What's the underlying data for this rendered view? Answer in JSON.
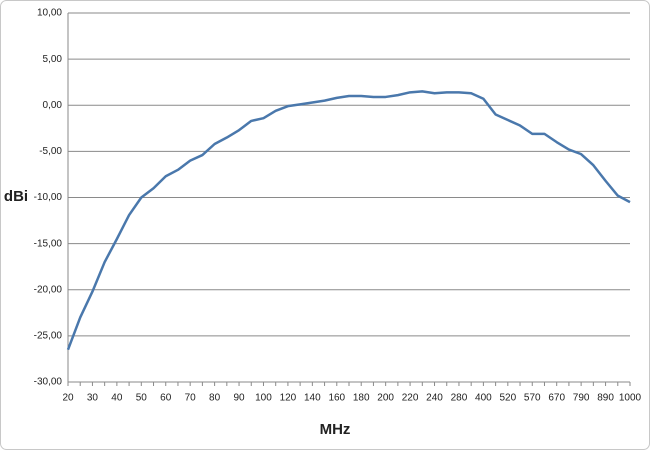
{
  "chart_data": {
    "type": "line",
    "x_label": "MHz",
    "y_label": "dBi",
    "categories": [
      "20",
      null,
      "30",
      null,
      "40",
      null,
      "50",
      null,
      "60",
      null,
      "70",
      null,
      "80",
      null,
      "90",
      null,
      "100",
      null,
      "120",
      null,
      "140",
      null,
      "160",
      null,
      "180",
      null,
      "200",
      null,
      "220",
      null,
      "240",
      null,
      "280",
      null,
      "400",
      null,
      "520",
      null,
      "570",
      null,
      "670",
      null,
      "790",
      null,
      "890",
      null,
      "1000"
    ],
    "series": [
      {
        "name": "dBi",
        "color": "#4a78ac",
        "values": [
          -26.5,
          -23,
          -20.2,
          -17,
          -14.5,
          -11.9,
          -10,
          -9,
          -7.7,
          -7,
          -6,
          -5.4,
          -4.2,
          -3.5,
          -2.7,
          -1.7,
          -1.4,
          -0.6,
          -0.1,
          0.1,
          0.3,
          0.5,
          0.8,
          1.0,
          1.0,
          0.9,
          0.9,
          1.1,
          1.4,
          1.5,
          1.3,
          1.4,
          1.4,
          1.3,
          0.7,
          -1.0,
          -1.6,
          -2.2,
          -3.1,
          -3.1,
          -4.0,
          -4.8,
          -5.3,
          -6.5,
          -8.2,
          -9.8,
          -10.5
        ]
      }
    ],
    "ylim": [
      -30,
      10
    ],
    "yticks": [
      {
        "value": -30,
        "label": "-30,00"
      },
      {
        "value": -25,
        "label": "-25,00"
      },
      {
        "value": -20,
        "label": "-20,00"
      },
      {
        "value": -15,
        "label": "-15,00"
      },
      {
        "value": -10,
        "label": "-10,00"
      },
      {
        "value": -5,
        "label": "-5,00"
      },
      {
        "value": 0,
        "label": "0,00"
      },
      {
        "value": 5,
        "label": "5,00"
      },
      {
        "value": 10,
        "label": "10,00"
      }
    ],
    "grid": true
  }
}
